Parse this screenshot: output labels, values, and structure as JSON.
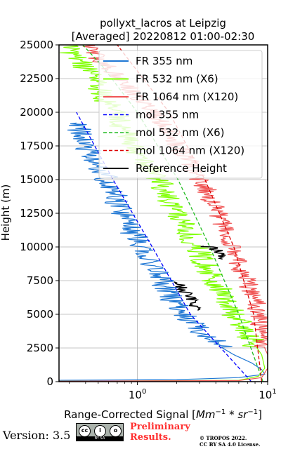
{
  "chart_data": {
    "type": "line",
    "title_line1": "pollyxt_lacros at Leipzig",
    "title_line2": "[Averaged] 20220812 01:00-02:30",
    "ylabel": "Height (m)",
    "xlabel_prefix": "Range-Corrected Signal [",
    "xlabel_math": "Mm",
    "xlabel_exp1": "−1",
    "xlabel_mid": " * ",
    "xlabel_math2": "sr",
    "xlabel_exp2": "−1",
    "xlabel_suffix": "]",
    "xscale": "log",
    "xlim": [
      0.25,
      10
    ],
    "ylim": [
      0,
      25000
    ],
    "yticks": [
      0,
      2500,
      5000,
      7500,
      10000,
      12500,
      15000,
      17500,
      20000,
      22500,
      25000
    ],
    "ytick_labels": [
      "0",
      "2500",
      "5000",
      "7500",
      "10000",
      "12500",
      "15000",
      "17500",
      "20000",
      "22500",
      "25000"
    ],
    "xticks": [
      {
        "value": 1,
        "base": "10",
        "exp": "0"
      },
      {
        "value": 10,
        "base": "10",
        "exp": "1"
      }
    ],
    "grid": true,
    "legend_placement": "top-right",
    "series": [
      {
        "name": "FR 355 nm",
        "color": "#1f77d4",
        "style": "solid",
        "noise": 0.1,
        "points": [
          [
            0.25,
            100
          ],
          [
            2.0,
            150
          ],
          [
            6.0,
            300
          ],
          [
            9.5,
            550
          ],
          [
            9.0,
            900
          ],
          [
            7.5,
            1400
          ],
          [
            5.5,
            2000
          ],
          [
            4.5,
            2500
          ],
          [
            3.3,
            3500
          ],
          [
            2.5,
            4500
          ],
          [
            1.9,
            6000
          ],
          [
            1.4,
            8000
          ],
          [
            1.05,
            10000
          ],
          [
            0.82,
            12000
          ],
          [
            0.65,
            14000
          ],
          [
            0.55,
            15500
          ],
          [
            0.48,
            16500
          ],
          [
            0.4,
            17500
          ],
          [
            0.36,
            18500
          ],
          [
            0.34,
            19200
          ]
        ]
      },
      {
        "name": "FR 532 nm (X6)",
        "color": "#7fff00",
        "style": "solid",
        "noise": 0.1,
        "points": [
          [
            0.25,
            30
          ],
          [
            6.0,
            100
          ],
          [
            8.5,
            400
          ],
          [
            9.5,
            1000
          ],
          [
            9.0,
            2000
          ],
          [
            7.0,
            3500
          ],
          [
            5.5,
            5000
          ],
          [
            4.2,
            7000
          ],
          [
            3.2,
            9000
          ],
          [
            2.5,
            11000
          ],
          [
            1.9,
            13000
          ],
          [
            1.55,
            14500
          ],
          [
            1.2,
            16000
          ],
          [
            1.0,
            17000
          ],
          [
            0.82,
            18500
          ],
          [
            0.66,
            20000
          ],
          [
            0.52,
            21500
          ],
          [
            0.42,
            22800
          ],
          [
            0.34,
            24000
          ],
          [
            0.28,
            25000
          ]
        ]
      },
      {
        "name": "FR 1064 nm (X120)",
        "color": "#f05555",
        "style": "solid",
        "noise": 0.08,
        "points": [
          [
            0.25,
            30
          ],
          [
            6.0,
            80
          ],
          [
            9.0,
            300
          ],
          [
            10.0,
            1000
          ],
          [
            10.0,
            2000
          ],
          [
            9.5,
            2500
          ],
          [
            9.0,
            4000
          ],
          [
            8.0,
            6000
          ],
          [
            6.5,
            8000
          ],
          [
            5.3,
            10000
          ],
          [
            4.3,
            12000
          ],
          [
            3.5,
            14000
          ],
          [
            2.6,
            16000
          ],
          [
            1.9,
            18000
          ],
          [
            1.3,
            20000
          ],
          [
            0.95,
            21500
          ],
          [
            0.65,
            23000
          ],
          [
            0.46,
            24300
          ],
          [
            0.4,
            25000
          ]
        ]
      },
      {
        "name": "mol 355 nm",
        "color": "#0000ff",
        "style": "dashed",
        "points": [
          [
            7.5,
            0
          ],
          [
            2.55,
            5000
          ],
          [
            1.3,
            10000
          ],
          [
            0.65,
            15000
          ],
          [
            0.34,
            20000
          ]
        ]
      },
      {
        "name": "mol 532 nm (X6)",
        "color": "#22bb22",
        "style": "dashed",
        "points": [
          [
            9.2,
            0
          ],
          [
            6.0,
            5000
          ],
          [
            3.6,
            10000
          ],
          [
            2.05,
            15000
          ],
          [
            1.0,
            20000
          ],
          [
            0.53,
            23500
          ],
          [
            0.38,
            25000
          ]
        ]
      },
      {
        "name": "mol 1064 nm (X120)",
        "color": "#dd0000",
        "style": "dashed",
        "points": [
          [
            9.0,
            0
          ],
          [
            7.8,
            5000
          ],
          [
            5.5,
            10000
          ],
          [
            3.3,
            15000
          ],
          [
            1.75,
            20000
          ],
          [
            0.7,
            25000
          ]
        ]
      },
      {
        "name": "Reference Height",
        "color": "#000000",
        "style": "solid",
        "noise": 0.05,
        "segments": [
          [
            [
              3.1,
              10050
            ],
            [
              3.5,
              10000
            ],
            [
              3.9,
              9900
            ],
            [
              4.3,
              9500
            ],
            [
              4.5,
              9100
            ]
          ],
          [
            [
              2.0,
              7400
            ],
            [
              2.4,
              6500
            ],
            [
              2.65,
              6000
            ],
            [
              2.9,
              5300
            ]
          ]
        ]
      }
    ]
  },
  "footer": {
    "version": "Version: 3.5",
    "cc_badge": {
      "top_symbols": [
        "cc",
        "i",
        "o"
      ],
      "bottom_text": "BY SA"
    },
    "preliminary_line1": "Preliminary",
    "preliminary_line2": "Results.",
    "copyright_line1": "© TROPOS 2022.",
    "copyright_line2": "CC BY SA 4.0 License."
  }
}
